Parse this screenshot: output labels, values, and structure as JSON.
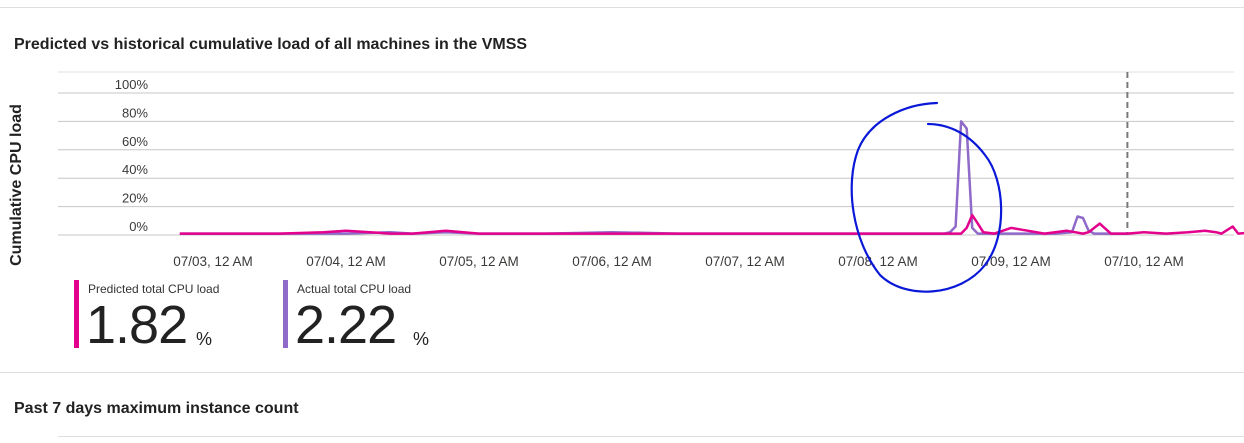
{
  "section1": {
    "title": "Predicted vs historical cumulative load of all machines in the VMSS"
  },
  "section2": {
    "title": "Past 7 days maximum instance count"
  },
  "colors": {
    "predicted": "#e3008c",
    "actual": "#8f6ac8",
    "annotation": "#0a18d8",
    "grid": "#e1dfdd",
    "now_line": "#7a7a7a"
  },
  "legend": [
    {
      "label": "Predicted total CPU load",
      "value": "1.82",
      "unit": "%",
      "color": "#e3008c"
    },
    {
      "label": "Actual total CPU load",
      "value": "2.22",
      "unit": "%",
      "color": "#8f6ac8"
    }
  ],
  "chart_data": {
    "type": "line",
    "title": "Predicted vs historical cumulative load of all machines in the VMSS",
    "ylabel": "Cumulative CPU load",
    "xlabel": "",
    "y_ticks": [
      "0%",
      "20%",
      "40%",
      "60%",
      "80%",
      "100%"
    ],
    "ylim": [
      0,
      100
    ],
    "x_tick_labels": [
      "07/03, 12 AM",
      "07/04, 12 AM",
      "07/05, 12 AM",
      "07/06, 12 AM",
      "07/07, 12 AM",
      "07/08, 12 AM",
      "07/09, 12 AM",
      "07/10, 12 AM"
    ],
    "xlim": [
      "2023-07-02 18:00",
      "2023-07-10 20:00"
    ],
    "grid": true,
    "current_time_marker": "2023-07-09 21:00",
    "series": [
      {
        "name": "Predicted total CPU load",
        "color": "#e3008c",
        "x": [
          "2023-07-02 18:00",
          "2023-07-03 00:00",
          "2023-07-03 12:00",
          "2023-07-03 20:00",
          "2023-07-04 00:00",
          "2023-07-04 08:00",
          "2023-07-04 12:00",
          "2023-07-04 18:00",
          "2023-07-05 00:00",
          "2023-07-05 12:00",
          "2023-07-06 00:00",
          "2023-07-06 12:00",
          "2023-07-07 00:00",
          "2023-07-07 12:00",
          "2023-07-08 00:00",
          "2023-07-08 12:00",
          "2023-07-08 15:00",
          "2023-07-08 16:00",
          "2023-07-08 17:00",
          "2023-07-08 18:00",
          "2023-07-08 19:00",
          "2023-07-08 21:00",
          "2023-07-09 00:00",
          "2023-07-09 03:00",
          "2023-07-09 06:00",
          "2023-07-09 08:00",
          "2023-07-09 10:00",
          "2023-07-09 13:00",
          "2023-07-09 14:00",
          "2023-07-09 16:00",
          "2023-07-09 18:00",
          "2023-07-09 21:00",
          "2023-07-10 00:00",
          "2023-07-10 04:00",
          "2023-07-10 08:00",
          "2023-07-10 11:00",
          "2023-07-10 13:00",
          "2023-07-10 14:00",
          "2023-07-10 16:00",
          "2023-07-10 17:00",
          "2023-07-10 20:00"
        ],
        "y": [
          1,
          1,
          1,
          2,
          3,
          1,
          1,
          3,
          1,
          1,
          1,
          1,
          1,
          1,
          1,
          1,
          1,
          5,
          14,
          8,
          2,
          1,
          5,
          3,
          1,
          2,
          3,
          1,
          2,
          8,
          1,
          1,
          2,
          1,
          2,
          3,
          2,
          1,
          6,
          1,
          2
        ]
      },
      {
        "name": "Actual total CPU load",
        "color": "#8f6ac8",
        "x": [
          "2023-07-02 18:00",
          "2023-07-03 00:00",
          "2023-07-03 12:00",
          "2023-07-04 00:00",
          "2023-07-04 08:00",
          "2023-07-04 12:00",
          "2023-07-04 18:00",
          "2023-07-05 00:00",
          "2023-07-05 12:00",
          "2023-07-06 00:00",
          "2023-07-06 12:00",
          "2023-07-07 00:00",
          "2023-07-07 12:00",
          "2023-07-08 00:00",
          "2023-07-08 12:00",
          "2023-07-08 13:00",
          "2023-07-08 14:00",
          "2023-07-08 15:00",
          "2023-07-08 16:00",
          "2023-07-08 17:00",
          "2023-07-08 18:00",
          "2023-07-09 00:00",
          "2023-07-09 08:00",
          "2023-07-09 11:00",
          "2023-07-09 12:00",
          "2023-07-09 13:00",
          "2023-07-09 14:00",
          "2023-07-09 15:00",
          "2023-07-09 18:00",
          "2023-07-09 21:00"
        ],
        "y": [
          1,
          1,
          1,
          1,
          2,
          1,
          2,
          1,
          1,
          2,
          1,
          1,
          1,
          1,
          1,
          2,
          6,
          80,
          75,
          5,
          1,
          1,
          1,
          2,
          13,
          12,
          3,
          1,
          1,
          1
        ]
      }
    ]
  },
  "annotation": {
    "kind": "hand-drawn circle",
    "color": "#0a18d8"
  }
}
